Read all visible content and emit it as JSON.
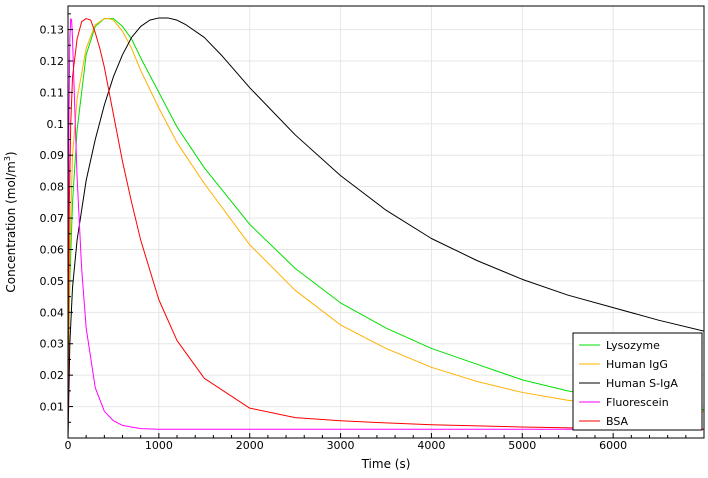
{
  "chart_data": {
    "type": "line",
    "title": "",
    "xlabel": "Time (s)",
    "ylabel_main": "Concentration (mol/m",
    "ylabel_sup": "3",
    "ylabel_tail": ")",
    "xlim": [
      0,
      7000
    ],
    "ylim": [
      0,
      0.1375
    ],
    "xticks": [
      0,
      1000,
      2000,
      3000,
      4000,
      5000,
      6000
    ],
    "xtick_labels": [
      "0",
      "1000",
      "2000",
      "3000",
      "4000",
      "5000",
      "6000"
    ],
    "yticks": [
      0.01,
      0.02,
      0.03,
      0.04,
      0.05,
      0.06,
      0.07,
      0.08,
      0.09,
      0.1,
      0.11,
      0.12,
      0.13
    ],
    "ytick_labels": [
      "0.01",
      "0.02",
      "0.03",
      "0.04",
      "0.05",
      "0.06",
      "0.07",
      "0.08",
      "0.09",
      "0.1",
      "0.11",
      "0.12",
      "0.13"
    ],
    "grid": true,
    "legend_position": "bottom-right",
    "series": [
      {
        "name": "Lysozyme",
        "color": "#00e000",
        "x": [
          0,
          5,
          20,
          50,
          100,
          200,
          300,
          400,
          500,
          600,
          700,
          800,
          1000,
          1200,
          1500,
          2000,
          2500,
          3000,
          3500,
          4000,
          4500,
          5000,
          5500,
          6000,
          6500,
          7000
        ],
        "y": [
          0.0,
          0.02,
          0.05,
          0.075,
          0.098,
          0.122,
          0.131,
          0.1335,
          0.1335,
          0.131,
          0.127,
          0.121,
          0.11,
          0.099,
          0.086,
          0.068,
          0.054,
          0.043,
          0.035,
          0.0285,
          0.0235,
          0.0185,
          0.015,
          0.0125,
          0.0105,
          0.009
        ]
      },
      {
        "name": "Human IgG",
        "color": "#ffb000",
        "x": [
          0,
          5,
          20,
          50,
          100,
          200,
          300,
          400,
          450,
          500,
          600,
          700,
          800,
          1000,
          1200,
          1500,
          2000,
          2500,
          3000,
          3500,
          4000,
          4500,
          5000,
          5500,
          6000,
          6500,
          7000
        ],
        "y": [
          0.0,
          0.025,
          0.06,
          0.09,
          0.108,
          0.124,
          0.1315,
          0.1335,
          0.1335,
          0.133,
          0.1295,
          0.124,
          0.117,
          0.105,
          0.094,
          0.081,
          0.0615,
          0.047,
          0.036,
          0.0285,
          0.0225,
          0.018,
          0.0145,
          0.012,
          0.0105,
          0.0095,
          0.0085
        ]
      },
      {
        "name": "Human S-IgA",
        "color": "#000000",
        "x": [
          0,
          20,
          50,
          100,
          200,
          300,
          400,
          500,
          600,
          700,
          800,
          900,
          1000,
          1100,
          1200,
          1300,
          1500,
          1700,
          2000,
          2500,
          3000,
          3500,
          4000,
          4500,
          5000,
          5500,
          6000,
          6500,
          7000
        ],
        "y": [
          0.0,
          0.03,
          0.048,
          0.063,
          0.082,
          0.095,
          0.106,
          0.115,
          0.122,
          0.1275,
          0.131,
          0.133,
          0.1337,
          0.1337,
          0.133,
          0.1315,
          0.1275,
          0.1215,
          0.1115,
          0.0965,
          0.0835,
          0.0725,
          0.0635,
          0.0565,
          0.0505,
          0.0455,
          0.0415,
          0.0375,
          0.034
        ]
      },
      {
        "name": "Fluorescein",
        "color": "#ff00ff",
        "x": [
          0,
          5,
          10,
          20,
          30,
          40,
          50,
          60,
          80,
          100,
          150,
          200,
          300,
          400,
          500,
          600,
          800,
          1000,
          1500,
          2000,
          3000,
          4000,
          5000,
          6000,
          7000
        ],
        "y": [
          0.0,
          0.06,
          0.1,
          0.127,
          0.1335,
          0.133,
          0.127,
          0.118,
          0.1,
          0.083,
          0.054,
          0.035,
          0.016,
          0.0085,
          0.0055,
          0.004,
          0.003,
          0.0028,
          0.0028,
          0.0028,
          0.0028,
          0.0028,
          0.0028,
          0.0028,
          0.0028
        ]
      },
      {
        "name": "BSA",
        "color": "#ff0000",
        "x": [
          0,
          5,
          15,
          30,
          50,
          100,
          150,
          200,
          250,
          300,
          350,
          400,
          500,
          600,
          700,
          800,
          1000,
          1200,
          1500,
          2000,
          2500,
          3000,
          3500,
          4000,
          5000,
          6000,
          7000
        ],
        "y": [
          0.0,
          0.04,
          0.075,
          0.1,
          0.115,
          0.127,
          0.1325,
          0.1335,
          0.133,
          0.129,
          0.124,
          0.118,
          0.103,
          0.088,
          0.075,
          0.063,
          0.044,
          0.031,
          0.019,
          0.0095,
          0.0065,
          0.0055,
          0.0048,
          0.0042,
          0.0035,
          0.003,
          0.0028
        ]
      }
    ]
  }
}
